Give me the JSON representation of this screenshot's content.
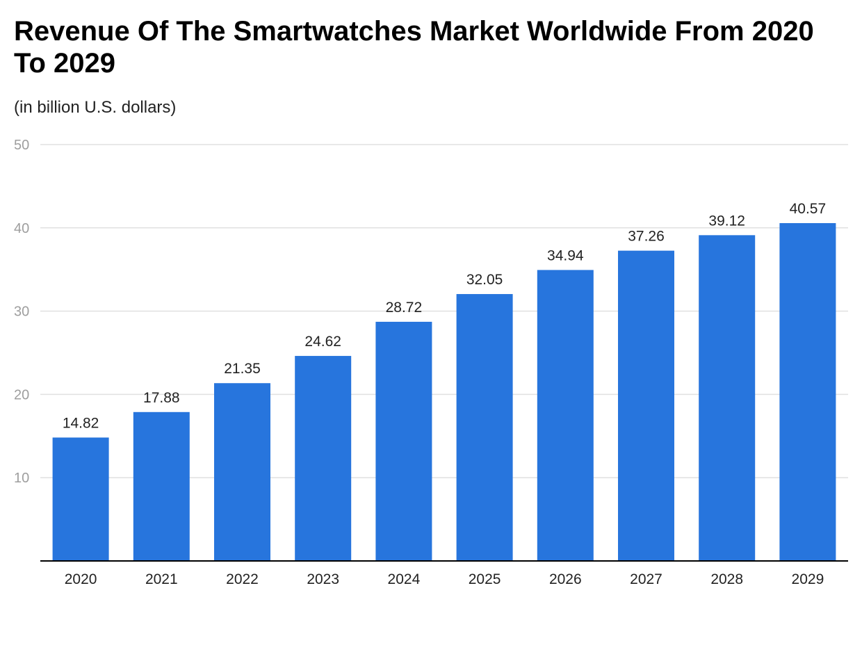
{
  "chart_data": {
    "type": "bar",
    "title": "Revenue Of The Smartwatches Market Worldwide From 2020 To 2029",
    "subtitle": "(in billion U.S. dollars)",
    "xlabel": "",
    "ylabel": "",
    "categories": [
      "2020",
      "2021",
      "2022",
      "2023",
      "2024",
      "2025",
      "2026",
      "2027",
      "2028",
      "2029"
    ],
    "values": [
      14.82,
      17.88,
      21.35,
      24.62,
      28.72,
      32.05,
      34.94,
      37.26,
      39.12,
      40.57
    ],
    "value_labels": [
      "14.82",
      "17.88",
      "21.35",
      "24.62",
      "28.72",
      "32.05",
      "34.94",
      "37.26",
      "39.12",
      "40.57"
    ],
    "ylim": [
      0,
      50
    ],
    "yticks": [
      10,
      20,
      30,
      40,
      50
    ],
    "grid": true,
    "legend": "none",
    "colors": {
      "bar": "#2775dd",
      "grid": "#e0e0e0",
      "axis": "#000000"
    }
  }
}
